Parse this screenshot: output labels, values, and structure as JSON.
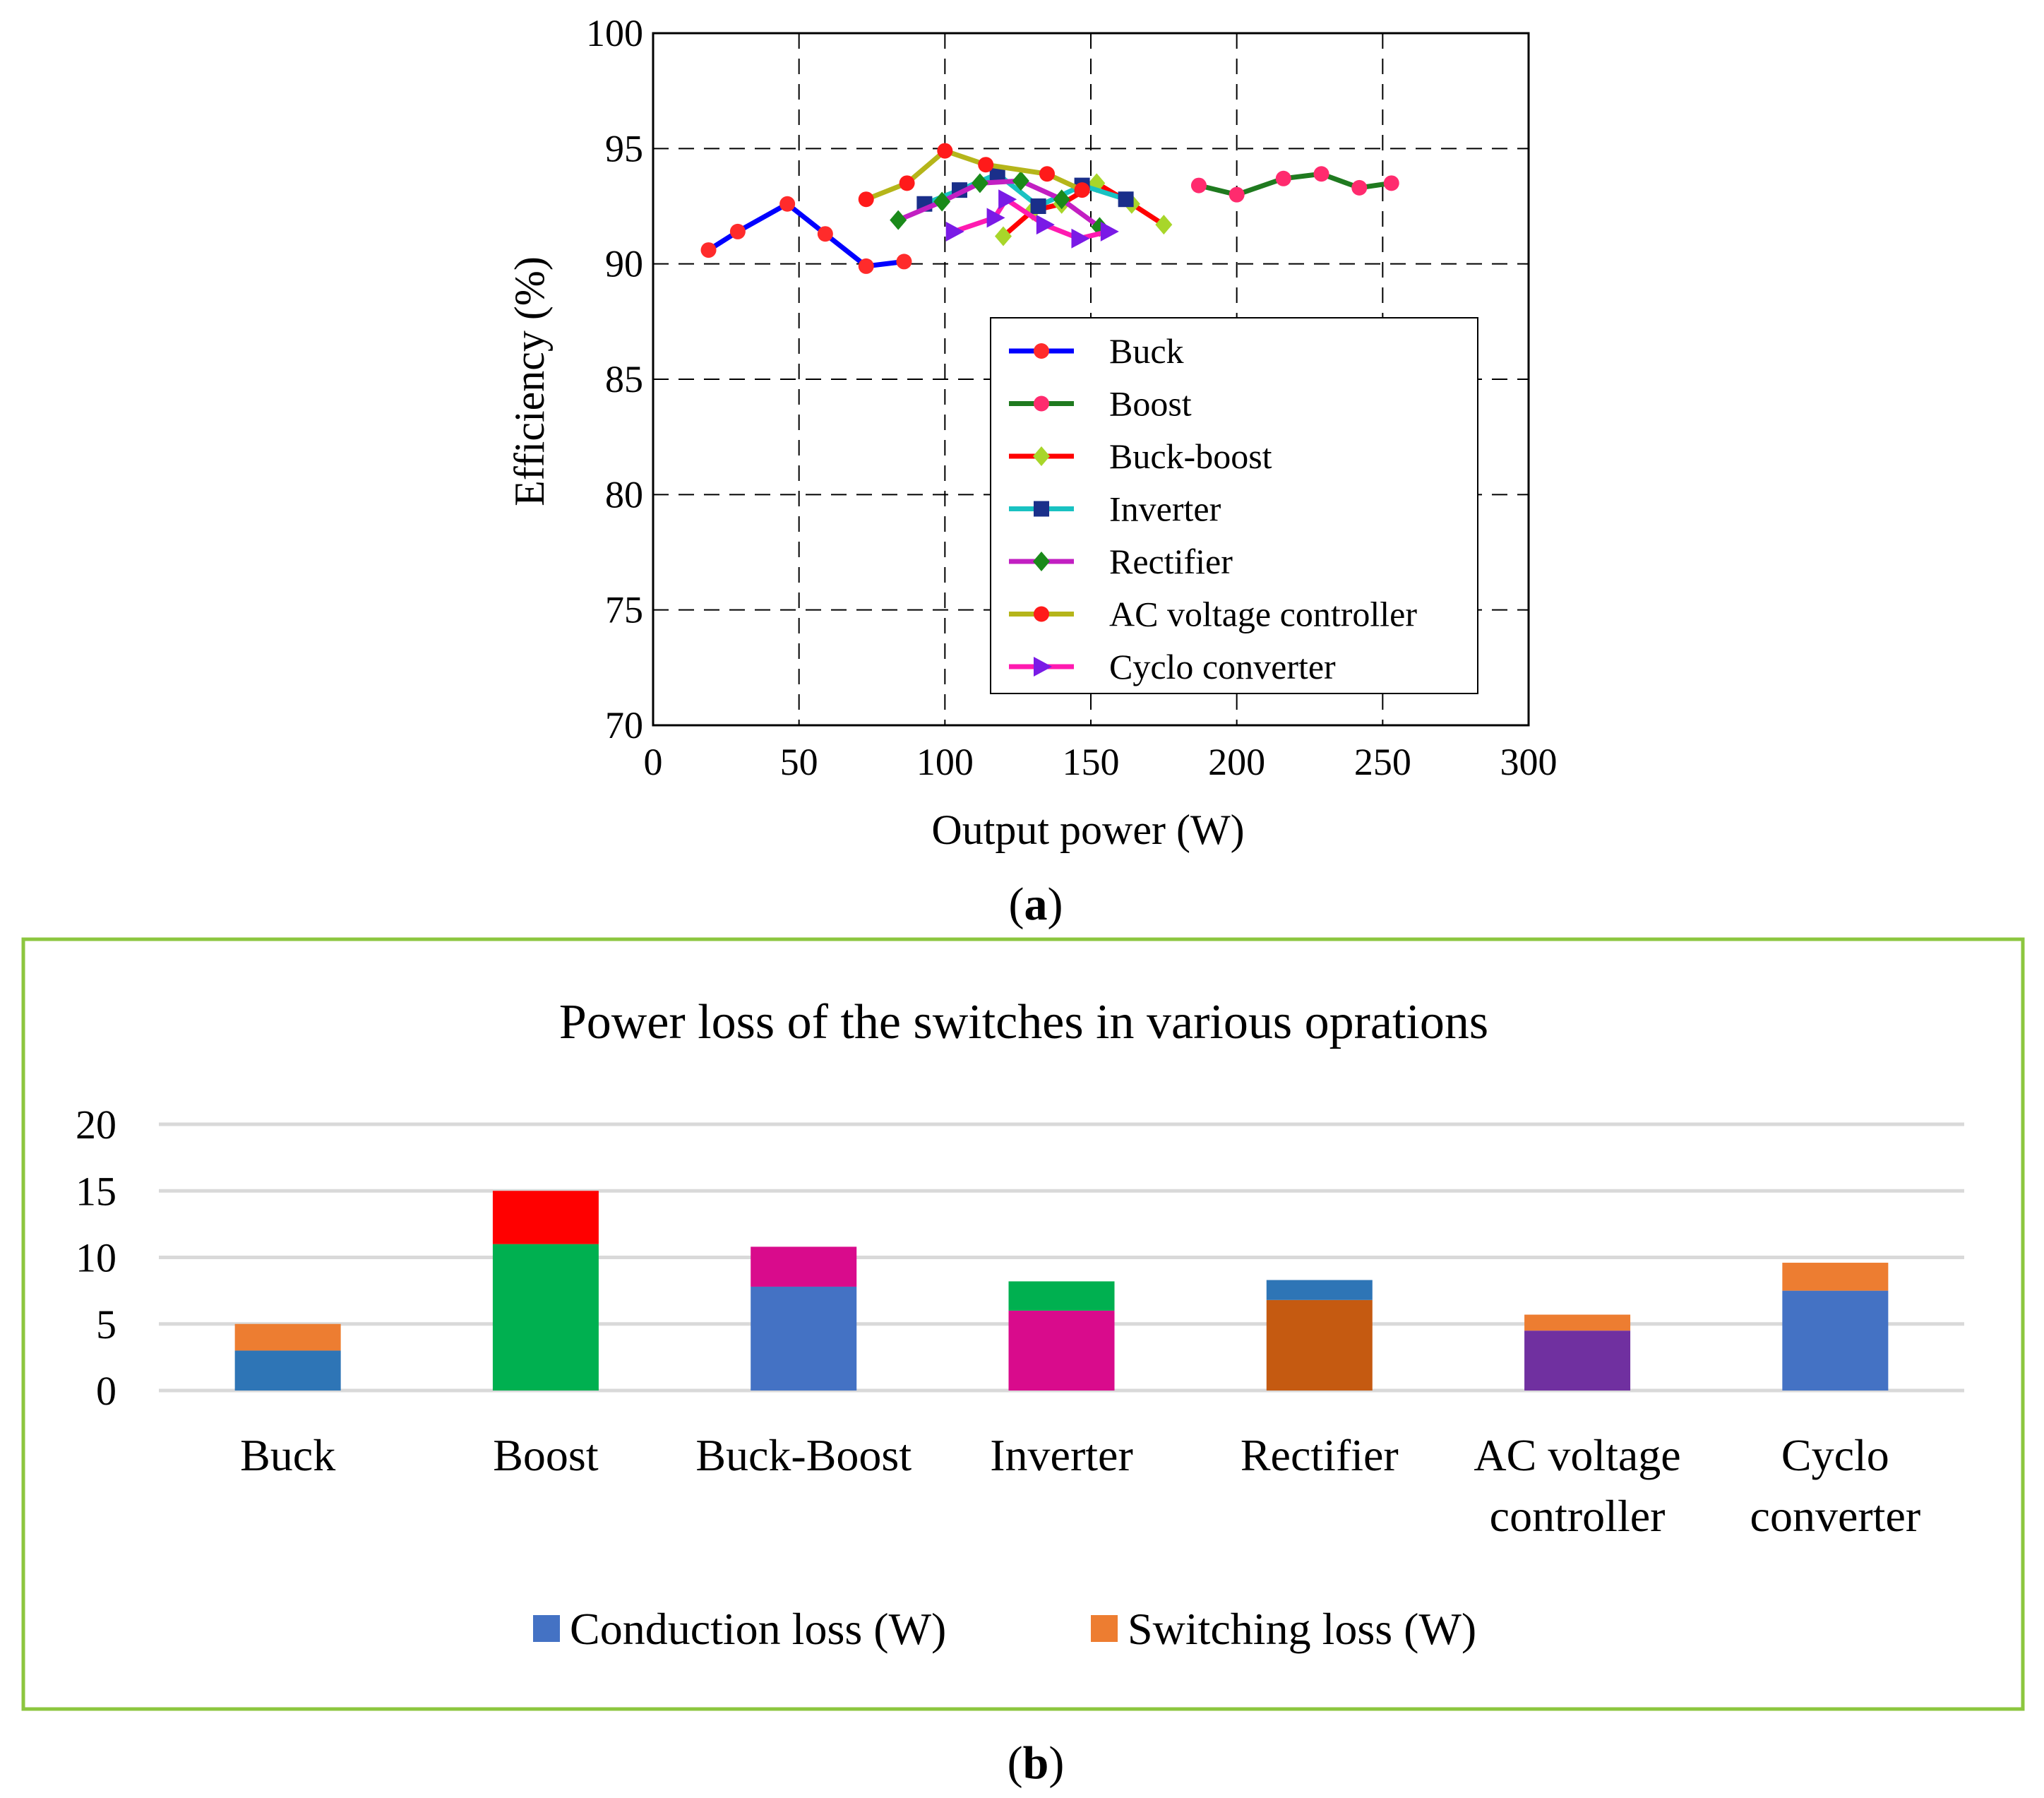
{
  "chart_data": [
    {
      "panel_label": "a",
      "type": "line",
      "xlabel": "Output power (W)",
      "ylabel": "Efficiency (%)",
      "xlim": [
        0,
        300
      ],
      "ylim": [
        70,
        100
      ],
      "xticks": [
        "0",
        "50",
        "100",
        "150",
        "200",
        "250",
        "300"
      ],
      "yticks": [
        "70",
        "75",
        "80",
        "85",
        "90",
        "95",
        "100"
      ],
      "grid": "dashed",
      "legend_position": "bottom-right",
      "series": [
        {
          "name": "Buck",
          "color": "#0000ff",
          "marker": "circle",
          "marker_color": "#ff2b2b",
          "x": [
            19,
            29,
            46,
            59,
            73,
            86
          ],
          "y": [
            90.6,
            91.4,
            92.6,
            91.3,
            89.9,
            90.1
          ]
        },
        {
          "name": "Boost",
          "color": "#1f7a1f",
          "marker": "circle",
          "marker_color": "#ff2b6e",
          "x": [
            187,
            200,
            216,
            229,
            242,
            253
          ],
          "y": [
            93.4,
            93.0,
            93.7,
            93.9,
            93.3,
            93.5
          ]
        },
        {
          "name": "Buck-boost",
          "color": "#ff0000",
          "marker": "diamond",
          "marker_color": "#a8d62a",
          "x": [
            120,
            130,
            140,
            152,
            164,
            175
          ],
          "y": [
            91.2,
            92.3,
            92.6,
            93.5,
            92.6,
            91.7
          ]
        },
        {
          "name": "Inverter",
          "color": "#19c2c2",
          "marker": "square",
          "marker_color": "#1a2f8a",
          "x": [
            93,
            105,
            118,
            132,
            147,
            162
          ],
          "y": [
            92.6,
            93.2,
            93.9,
            92.5,
            93.4,
            92.8
          ]
        },
        {
          "name": "Rectifier",
          "color": "#c21fc2",
          "marker": "diamond",
          "marker_color": "#1a8a1a",
          "x": [
            84,
            99,
            112,
            126,
            140,
            153
          ],
          "y": [
            91.9,
            92.7,
            93.5,
            93.6,
            92.8,
            91.6
          ]
        },
        {
          "name": "AC voltage controller",
          "color": "#b5b51a",
          "marker": "circle",
          "marker_color": "#ff1a1a",
          "x": [
            73,
            87,
            100,
            114,
            135,
            147
          ],
          "y": [
            92.8,
            93.5,
            94.9,
            94.3,
            93.9,
            93.2
          ]
        },
        {
          "name": "Cyclo converter",
          "color": "#ff1ab0",
          "marker": "triangle-right",
          "marker_color": "#7a1ae6",
          "x": [
            103,
            117,
            121,
            134,
            146,
            156
          ],
          "y": [
            91.4,
            92.0,
            92.8,
            91.7,
            91.1,
            91.4
          ]
        }
      ]
    },
    {
      "panel_label": "b",
      "type": "bar",
      "title": "Power loss of the switches in various oprations",
      "categories": [
        "Buck",
        "Boost",
        "Buck-Boost",
        "Inverter",
        "Rectifier",
        "AC voltage controller",
        "Cyclo converter"
      ],
      "category_lines": [
        [
          "Buck"
        ],
        [
          "Boost"
        ],
        [
          "Buck-Boost"
        ],
        [
          "Inverter"
        ],
        [
          "Rectifier"
        ],
        [
          "AC voltage",
          "controller"
        ],
        [
          "Cyclo",
          "converter"
        ]
      ],
      "ylim": [
        0,
        20
      ],
      "yticks": [
        "0",
        "5",
        "10",
        "15",
        "20"
      ],
      "grid": "horizontal",
      "legend_position": "bottom",
      "series": [
        {
          "name": "Conduction loss (W)",
          "legend_color": "#4472c4",
          "values": [
            3.0,
            11.0,
            7.8,
            6.0,
            6.8,
            4.5,
            7.5
          ],
          "colors": [
            "#2e75b6",
            "#00b050",
            "#4472c4",
            "#d90b8c",
            "#c55a11",
            "#7030a0",
            "#4472c4"
          ]
        },
        {
          "name": "Switching loss (W)",
          "legend_color": "#ed7d31",
          "values": [
            2.0,
            4.0,
            3.0,
            2.2,
            1.5,
            1.2,
            2.1
          ],
          "colors": [
            "#ed7d31",
            "#ff0000",
            "#d90b8c",
            "#00b050",
            "#2e75b6",
            "#ed7d31",
            "#ed7d31"
          ]
        }
      ]
    }
  ]
}
